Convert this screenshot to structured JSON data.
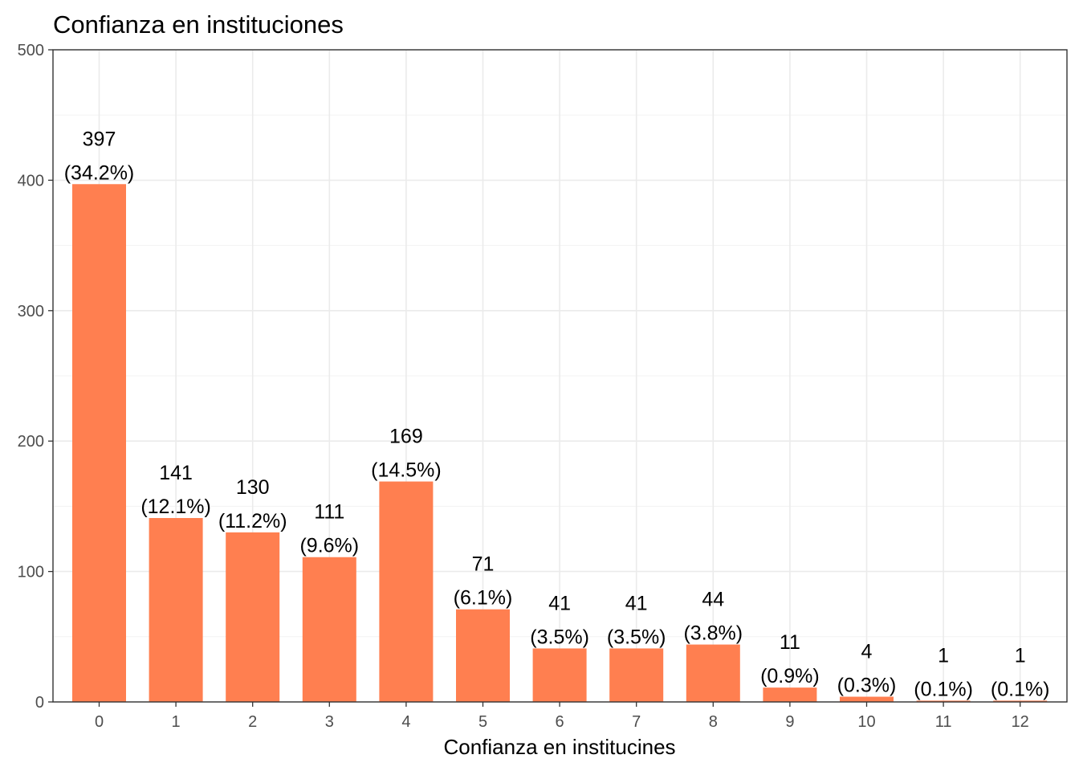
{
  "chart_data": {
    "type": "bar",
    "title": "Confianza en instituciones",
    "xlabel": "Confianza en institucines",
    "ylabel": "",
    "categories": [
      "0",
      "1",
      "2",
      "3",
      "4",
      "5",
      "6",
      "7",
      "8",
      "9",
      "10",
      "11",
      "12"
    ],
    "values": [
      397,
      141,
      130,
      111,
      169,
      71,
      41,
      41,
      44,
      11,
      4,
      1,
      1
    ],
    "value_labels": [
      "397",
      "141",
      "130",
      "111",
      "169",
      "71",
      "41",
      "41",
      "44",
      "11",
      "4",
      "1",
      "1"
    ],
    "percent_labels": [
      "(34.2%)",
      "(12.1%)",
      "(11.2%)",
      "(9.6%)",
      "(14.5%)",
      "(6.1%)",
      "(3.5%)",
      "(3.5%)",
      "(3.8%)",
      "(0.9%)",
      "(0.3%)",
      "(0.1%)",
      "(0.1%)"
    ],
    "ylim": [
      0,
      500
    ],
    "yticks": [
      0,
      100,
      200,
      300,
      400,
      500
    ],
    "ytick_labels": [
      "0",
      "100",
      "200",
      "300",
      "400",
      "500"
    ],
    "bar_color": "#FF7F50",
    "grid": true,
    "legend": "none"
  }
}
